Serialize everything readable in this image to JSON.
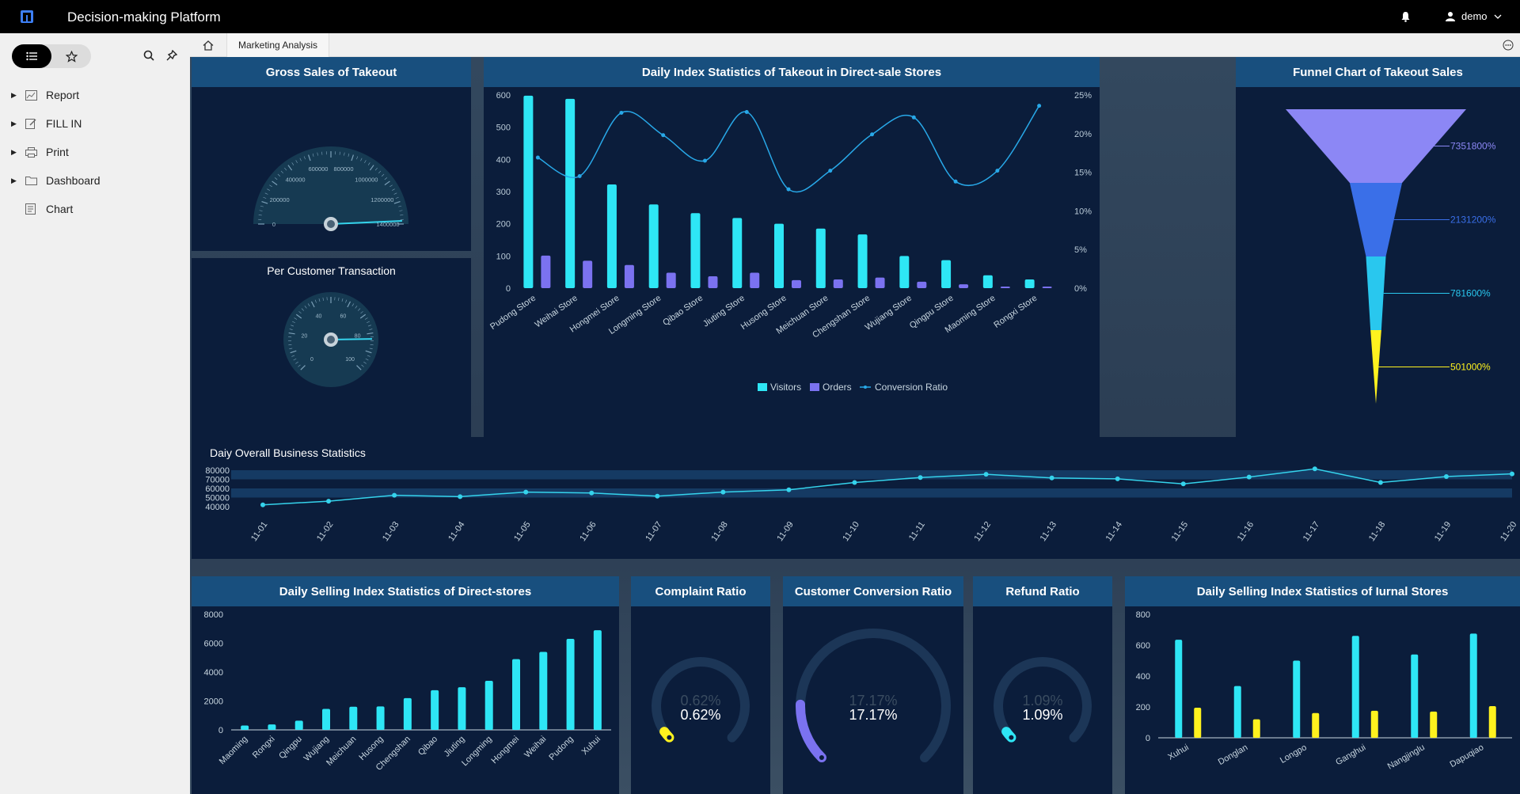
{
  "topbar": {
    "title": "Decision-making Platform",
    "user": "demo",
    "logo": "fine-logo-icon",
    "bell_icon": "bell-icon",
    "user_icon": "user-icon"
  },
  "sidebar": {
    "items": [
      {
        "label": "Report",
        "icon": "report-icon"
      },
      {
        "label": "FILL IN",
        "icon": "fill-in-icon"
      },
      {
        "label": "Print",
        "icon": "print-icon"
      },
      {
        "label": "Dashboard",
        "icon": "folder-icon"
      },
      {
        "label": "Chart",
        "icon": "chart-doc-icon"
      }
    ]
  },
  "tabs": {
    "active": "Marketing Analysis"
  },
  "gauges": {
    "gross": {
      "title": "Gross Sales of Takeout",
      "ticks": [
        "0",
        "200000",
        "400000",
        "600000",
        "800000",
        "1000000",
        "1200000",
        "1400000"
      ],
      "max": 1400000,
      "value": 1380000
    },
    "per_customer": {
      "title": "Per Customer Transaction",
      "ticks": [
        "0",
        "20",
        "40",
        "60",
        "80",
        "100"
      ],
      "max": 100,
      "value": 83
    }
  },
  "colors": {
    "cyan": "#2ee6f5",
    "purple": "#7b72f0",
    "line": "#28a8e8",
    "yellow": "#fff21e",
    "header": "#184f7e",
    "panel": "#0b1d3b"
  },
  "chart_data": [
    {
      "type": "bar",
      "title": "Daily Index Statistics of Takeout in Direct-sale Stores",
      "categories": [
        "Pudong Store",
        "Weihai Store",
        "Hongmei Store",
        "Longming Store",
        "Qibao Store",
        "Jiuting Store",
        "Husong Store",
        "Meichuan Store",
        "Chengshan Store",
        "Wujiang Store",
        "Qingpu Store",
        "Maoming Store",
        "Rongxi Store"
      ],
      "series": [
        {
          "name": "Visitors",
          "type": "bar",
          "values": [
            598,
            588,
            322,
            260,
            233,
            218,
            200,
            185,
            167,
            100,
            87,
            40,
            27
          ]
        },
        {
          "name": "Orders",
          "type": "bar",
          "values": [
            101,
            85,
            72,
            48,
            37,
            48,
            25,
            27,
            33,
            20,
            12,
            5,
            5
          ]
        },
        {
          "name": "Conversion Ratio",
          "type": "line",
          "axis": "right",
          "values": [
            16.9,
            14.5,
            22.7,
            19.8,
            16.5,
            22.8,
            12.8,
            15.2,
            19.9,
            22.1,
            13.8,
            15.2,
            23.6
          ]
        }
      ],
      "ylim": [
        0,
        600
      ],
      "y_ticks": [
        "600",
        "500",
        "400",
        "300",
        "200",
        "100",
        "0"
      ],
      "y2_ticks": [
        "25%",
        "20%",
        "15%",
        "10%",
        "5%",
        "0%"
      ],
      "legend": "bottom"
    },
    {
      "type": "funnel",
      "title": "Funnel Chart of Takeout Sales",
      "values": [
        7351800,
        2131200,
        781600,
        501000
      ],
      "labels": [
        "7351800%",
        "2131200%",
        "781600%",
        "501000%"
      ]
    },
    {
      "type": "line",
      "title": "Daiy Overall Business Statistics",
      "categories": [
        "11-01",
        "11-02",
        "11-03",
        "11-04",
        "11-05",
        "11-06",
        "11-07",
        "11-08",
        "11-09",
        "11-10",
        "11-11",
        "11-12",
        "11-13",
        "11-14",
        "11-15",
        "11-16",
        "11-17",
        "11-18",
        "11-19",
        "11-20"
      ],
      "values": [
        42000,
        46000,
        52500,
        51000,
        56000,
        55000,
        51500,
        56000,
        58500,
        66500,
        72000,
        75500,
        71500,
        70500,
        65000,
        72500,
        81500,
        66500,
        73000,
        76000
      ],
      "y_ticks": [
        "80000",
        "70000",
        "60000",
        "50000",
        "40000"
      ],
      "ylim": [
        40000,
        80000
      ]
    },
    {
      "type": "bar",
      "title": "Daily Selling Index Statistics of Direct-stores",
      "categories": [
        "Maoming",
        "Rongxi",
        "Qingpu",
        "Wujiang",
        "Meichuan",
        "Husong",
        "Chengshan",
        "Qibao",
        "Jiuting",
        "Longming",
        "Hongmei",
        "Weihai",
        "Pudong",
        "Xuhui"
      ],
      "values": [
        300,
        380,
        640,
        1450,
        1600,
        1620,
        2200,
        2750,
        2950,
        3400,
        4900,
        5400,
        6300,
        6900
      ],
      "ylim": [
        0,
        8000
      ],
      "y_ticks": [
        "8000",
        "6000",
        "4000",
        "2000",
        "0"
      ]
    },
    {
      "type": "gauge",
      "title": "Complaint Ratio",
      "value": 0.62,
      "label": "0.62%",
      "color": "#fff21e"
    },
    {
      "type": "gauge",
      "title": "Customer Conversion Ratio",
      "value": 17.17,
      "label": "17.17%",
      "color": "#7b72f0"
    },
    {
      "type": "gauge",
      "title": "Refund Ratio",
      "value": 1.09,
      "label": "1.09%",
      "color": "#2ee6f5"
    },
    {
      "type": "bar",
      "title": "Daily Selling Index Statistics of Iurnal Stores",
      "categories": [
        "Xuhui",
        "Donglan",
        "Longpo",
        "Ganghui",
        "Nangjinglu",
        "Dapuqiao"
      ],
      "series": [
        {
          "name": "cyan",
          "values": [
            635,
            335,
            500,
            660,
            540,
            675
          ]
        },
        {
          "name": "yellow",
          "values": [
            195,
            120,
            160,
            175,
            170,
            205
          ]
        }
      ],
      "ylim": [
        0,
        800
      ],
      "y_ticks": [
        "800",
        "600",
        "400",
        "200",
        "0"
      ]
    }
  ]
}
